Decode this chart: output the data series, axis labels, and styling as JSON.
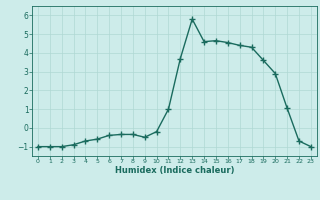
{
  "x": [
    0,
    1,
    2,
    3,
    4,
    5,
    6,
    7,
    8,
    9,
    10,
    11,
    12,
    13,
    14,
    15,
    16,
    17,
    18,
    19,
    20,
    21,
    22,
    23
  ],
  "y": [
    -1,
    -1,
    -1,
    -0.9,
    -0.7,
    -0.6,
    -0.4,
    -0.35,
    -0.35,
    -0.5,
    -0.2,
    1.0,
    3.7,
    5.8,
    4.6,
    4.65,
    4.55,
    4.4,
    4.3,
    3.6,
    2.9,
    1.05,
    -0.7,
    -1.0
  ],
  "xlabel": "Humidex (Indice chaleur)",
  "xlim": [
    -0.5,
    23.5
  ],
  "ylim": [
    -1.5,
    6.5
  ],
  "yticks": [
    -1,
    0,
    1,
    2,
    3,
    4,
    5,
    6
  ],
  "xticks": [
    0,
    1,
    2,
    3,
    4,
    5,
    6,
    7,
    8,
    9,
    10,
    11,
    12,
    13,
    14,
    15,
    16,
    17,
    18,
    19,
    20,
    21,
    22,
    23
  ],
  "line_color": "#1a6b5e",
  "marker": "+",
  "bg_color": "#cdecea",
  "grid_color": "#b0d8d4",
  "axis_color": "#1a6b5e",
  "tick_color": "#1a6b5e",
  "xlabel_color": "#1a6b5e",
  "line_width": 1.0,
  "marker_size": 4,
  "marker_edge_width": 1.0
}
